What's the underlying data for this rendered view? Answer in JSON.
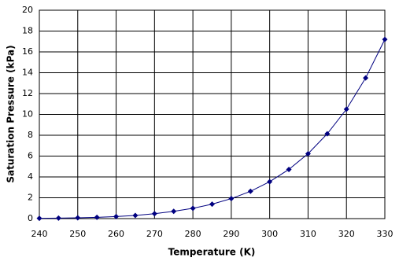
{
  "chart_data": {
    "type": "line",
    "x_label": "Temperature (K)",
    "y_label": "Saturation Pressure (kPa)",
    "x": [
      240,
      245,
      250,
      255,
      260,
      265,
      270,
      275,
      280,
      285,
      290,
      295,
      300,
      305,
      310,
      315,
      320,
      325,
      330
    ],
    "series": [
      {
        "color": "#000080",
        "values": [
          0.03,
          0.05,
          0.08,
          0.12,
          0.2,
          0.3,
          0.47,
          0.7,
          0.99,
          1.39,
          1.92,
          2.62,
          3.54,
          4.72,
          6.23,
          8.14,
          10.5,
          13.5,
          17.2
        ]
      }
    ],
    "xlim": [
      240,
      330
    ],
    "xticks": [
      240,
      250,
      260,
      270,
      280,
      290,
      300,
      310,
      320,
      330
    ],
    "ylim": [
      0,
      20
    ],
    "yticks": [
      0,
      2,
      4,
      6,
      8,
      10,
      12,
      14,
      16,
      18,
      20
    ],
    "grid": true
  }
}
